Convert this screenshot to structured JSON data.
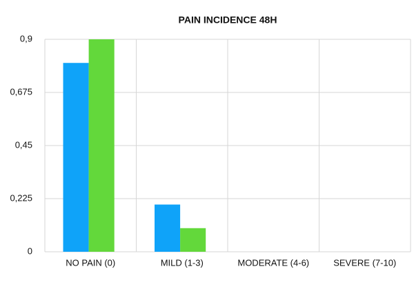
{
  "chart_data": {
    "type": "bar",
    "title": "PAIN INCIDENCE 48H",
    "categories": [
      "NO PAIN (0)",
      "MILD (1-3)",
      "MODERATE (4-6)",
      "SEVERE (7-10)"
    ],
    "series": [
      {
        "color": "#0fa3f9",
        "values": [
          0.8,
          0.2,
          0,
          0
        ]
      },
      {
        "color": "#63d83b",
        "values": [
          0.9,
          0.1,
          0,
          0
        ]
      }
    ],
    "ylim": [
      0,
      0.9
    ],
    "yticks": [
      0,
      {
        "value": 0.225,
        "label": "0,225"
      },
      {
        "value": 0.45,
        "label": "0,45"
      },
      {
        "value": 0.675,
        "label": "0,675"
      },
      {
        "value": 0.9,
        "label": "0,9"
      }
    ],
    "grid": true
  }
}
